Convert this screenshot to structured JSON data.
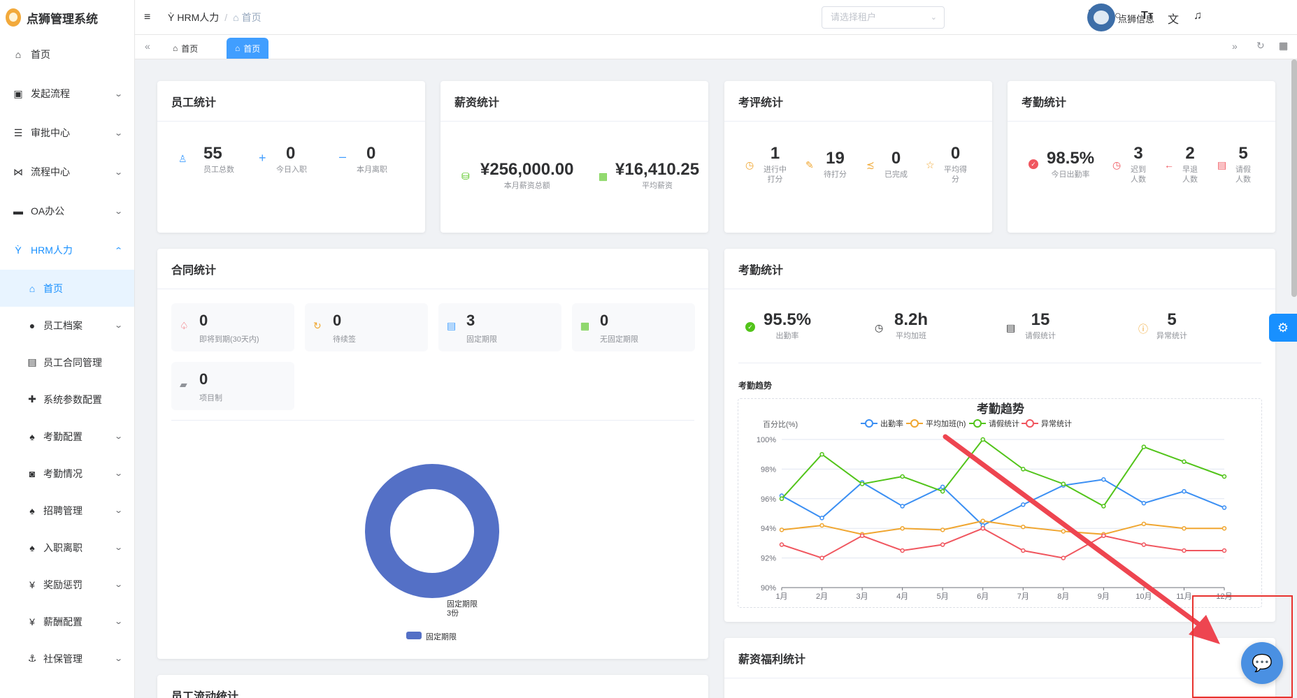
{
  "app": {
    "title": "点狮管理系统"
  },
  "sidebar": {
    "items": [
      {
        "label": "首页",
        "icon": "home-icon"
      },
      {
        "label": "发起流程",
        "icon": "flow-icon"
      },
      {
        "label": "审批中心",
        "icon": "list-icon"
      },
      {
        "label": "流程中心",
        "icon": "flow-center-icon"
      },
      {
        "label": "OA办公",
        "icon": "monitor-icon"
      },
      {
        "label": "HRM人力",
        "icon": "hrm-icon"
      }
    ],
    "sub_items": [
      {
        "label": "首页"
      },
      {
        "label": "员工档案"
      },
      {
        "label": "员工合同管理"
      },
      {
        "label": "系统参数配置"
      },
      {
        "label": "考勤配置"
      },
      {
        "label": "考勤情况"
      },
      {
        "label": "招聘管理"
      },
      {
        "label": "入职离职"
      },
      {
        "label": "奖励惩罚"
      },
      {
        "label": "薪酬配置"
      },
      {
        "label": "社保管理"
      }
    ]
  },
  "header": {
    "breadcrumb": [
      "HRM人力",
      "首页"
    ],
    "tenant_placeholder": "请选择租户",
    "user_name": "点狮信息"
  },
  "tabs": [
    {
      "label": "首页"
    },
    {
      "label": "首页"
    }
  ],
  "employee_stats": {
    "title": "员工统计",
    "items": [
      {
        "value": "55",
        "label": "员工总数"
      },
      {
        "value": "0",
        "label": "今日入职"
      },
      {
        "value": "0",
        "label": "本月离职"
      }
    ]
  },
  "salary_stats": {
    "title": "薪资统计",
    "items": [
      {
        "value": "¥256,000.00",
        "label": "本月薪资总额"
      },
      {
        "value": "¥16,410.25",
        "label": "平均薪资"
      }
    ]
  },
  "review_stats": {
    "title": "考评统计",
    "items": [
      {
        "value": "1",
        "label": "进行中",
        "label2": "打分"
      },
      {
        "value": "19",
        "label": "待打分"
      },
      {
        "value": "0",
        "label": "已完成"
      },
      {
        "value": "0",
        "label": "平均得",
        "label2": "分"
      }
    ]
  },
  "attendance_stats": {
    "title": "考勤统计",
    "items": [
      {
        "value": "98.5%",
        "label": "今日出勤率"
      },
      {
        "value": "3",
        "label": "迟到",
        "label2": "人数"
      },
      {
        "value": "2",
        "label": "早退",
        "label2": "人数"
      },
      {
        "value": "5",
        "label": "请假",
        "label2": "人数"
      }
    ]
  },
  "contract_stats": {
    "title": "合同统计",
    "boxes": [
      {
        "value": "0",
        "label": "即将到期(30天内)"
      },
      {
        "value": "0",
        "label": "待续签"
      },
      {
        "value": "3",
        "label": "固定期限"
      },
      {
        "value": "0",
        "label": "无固定期限"
      },
      {
        "value": "0",
        "label": "项目制"
      }
    ],
    "pie": {
      "slice_label": "固定期限",
      "slice_value": "3份",
      "legend": "固定期限",
      "color": "#5470c6"
    }
  },
  "attendance_panel": {
    "title": "考勤统计",
    "items": [
      {
        "value": "95.5%",
        "label": "出勤率"
      },
      {
        "value": "8.2h",
        "label": "平均加班"
      },
      {
        "value": "15",
        "label": "请假统计"
      },
      {
        "value": "5",
        "label": "异常统计"
      }
    ],
    "trend_label": "考勤趋势"
  },
  "chart_data": {
    "type": "line",
    "title": "考勤趋势",
    "ylabel": "百分比(%)",
    "ylim": [
      90,
      100
    ],
    "yticks": [
      "90%",
      "92%",
      "94%",
      "96%",
      "98%",
      "100%"
    ],
    "categories": [
      "1月",
      "2月",
      "3月",
      "4月",
      "5月",
      "6月",
      "7月",
      "8月",
      "9月",
      "10月",
      "11月",
      "12月"
    ],
    "series": [
      {
        "name": "出勤率",
        "color": "#3b8ff3",
        "values": [
          96.2,
          94.7,
          97.1,
          95.5,
          96.8,
          94.2,
          95.6,
          96.9,
          97.3,
          95.7,
          96.5,
          95.4
        ]
      },
      {
        "name": "平均加班(h)",
        "color": "#f0a630",
        "values": [
          93.9,
          94.2,
          93.6,
          94.0,
          93.9,
          94.5,
          94.1,
          93.8,
          93.6,
          94.3,
          94.0,
          94.0
        ]
      },
      {
        "name": "请假统计",
        "color": "#52c41a",
        "values": [
          96.0,
          99.0,
          97.0,
          97.5,
          96.5,
          100.0,
          98.0,
          97.0,
          95.5,
          99.5,
          98.5,
          97.5
        ]
      },
      {
        "name": "异常统计",
        "color": "#f0565f",
        "values": [
          92.9,
          92.0,
          93.5,
          92.5,
          92.9,
          94.0,
          92.5,
          92.0,
          93.5,
          92.9,
          92.5,
          92.5
        ]
      }
    ]
  },
  "benefit_stats": {
    "title": "薪资福利统计"
  },
  "flow_stats": {
    "title": "员工流动统计"
  }
}
